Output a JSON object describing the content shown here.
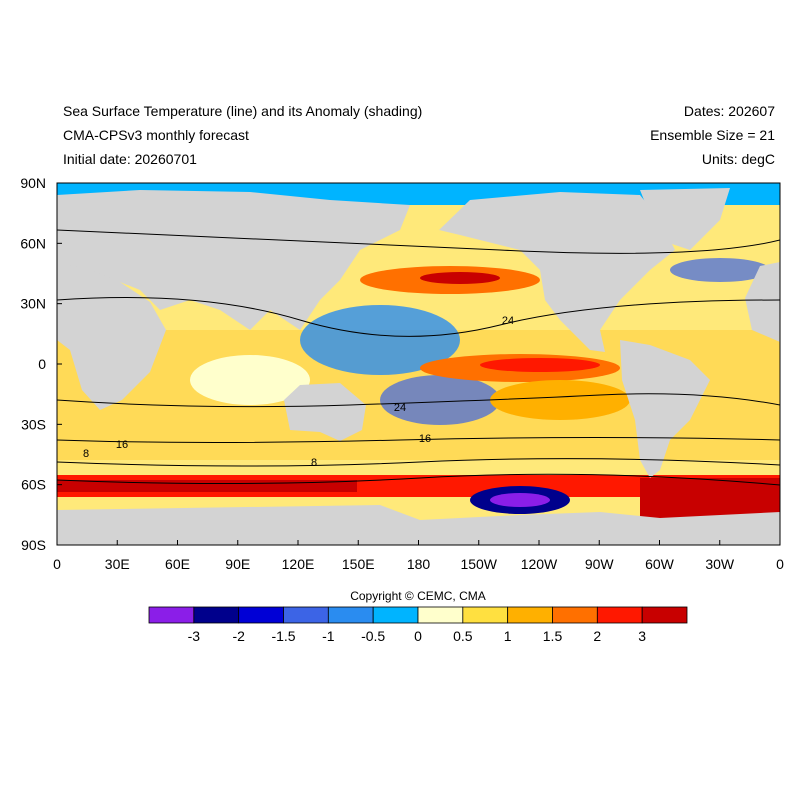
{
  "header": {
    "title": "Sea Surface Temperature (line) and its Anomaly (shading)",
    "subtitle": "CMA-CPSv3 monthly forecast",
    "initial_date": "Initial date: 20260701",
    "dates": "Dates: 202607",
    "ensemble": "Ensemble Size = 21",
    "units": "Units: degC"
  },
  "map": {
    "lon_labels": [
      "0",
      "30E",
      "60E",
      "90E",
      "120E",
      "150E",
      "180",
      "150W",
      "120W",
      "90W",
      "60W",
      "30W",
      "0"
    ],
    "lat_labels": [
      "90N",
      "60N",
      "30N",
      "0",
      "30S",
      "60S",
      "90S"
    ],
    "contour_labels": [
      24,
      24,
      16,
      16,
      8,
      8
    ]
  },
  "colorbar": {
    "colors": [
      "#8b1ee8",
      "#00008c",
      "#0000d6",
      "#3c64e6",
      "#2a8cf0",
      "#00b4ff",
      "#ffffcc",
      "#ffe040",
      "#ffb000",
      "#ff7000",
      "#ff1800",
      "#c80000"
    ],
    "levels": [
      -3,
      -2,
      -1.5,
      -1,
      -0.5,
      0,
      0.5,
      1,
      1.5,
      2,
      3
    ]
  },
  "copyright": "Copyright © CEMC, CMA"
}
